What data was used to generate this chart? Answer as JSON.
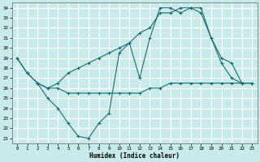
{
  "xlabel": "Humidex (Indice chaleur)",
  "xlim": [
    -0.5,
    23.5
  ],
  "ylim": [
    20.5,
    34.5
  ],
  "yticks": [
    21,
    22,
    23,
    24,
    25,
    26,
    27,
    28,
    29,
    30,
    31,
    32,
    33,
    34
  ],
  "xticks": [
    0,
    1,
    2,
    3,
    4,
    5,
    6,
    7,
    8,
    9,
    10,
    11,
    12,
    13,
    14,
    15,
    16,
    17,
    18,
    19,
    20,
    21,
    22,
    23
  ],
  "bg_color": "#c8eaea",
  "line_color": "#1a6e6e",
  "grid_color": "#ffffff",
  "line1_x": [
    0,
    1,
    2,
    3,
    4,
    5,
    6,
    7,
    8,
    9,
    10,
    11,
    12,
    13,
    14,
    15,
    16,
    17,
    18,
    19,
    20,
    21,
    22,
    23
  ],
  "line1_y": [
    29.0,
    27.5,
    26.5,
    25.0,
    24.0,
    22.5,
    21.2,
    21.0,
    22.5,
    23.5,
    29.5,
    30.5,
    27.0,
    31.0,
    34.0,
    34.0,
    33.5,
    34.0,
    34.0,
    31.0,
    28.5,
    27.0,
    26.5,
    26.5
  ],
  "line2_x": [
    2,
    3,
    4,
    5,
    6,
    7,
    8,
    9,
    10,
    11,
    12,
    13,
    14,
    15,
    16,
    17,
    18,
    19,
    20,
    21,
    22,
    23
  ],
  "line2_y": [
    26.5,
    26.0,
    26.5,
    27.5,
    28.0,
    28.5,
    29.0,
    29.5,
    30.0,
    30.5,
    31.5,
    32.0,
    33.5,
    33.5,
    34.0,
    34.0,
    33.5,
    31.0,
    29.0,
    28.5,
    26.5,
    26.5
  ],
  "line3_x": [
    0,
    1,
    2,
    3,
    4,
    5,
    6,
    7,
    8,
    9,
    10,
    11,
    12,
    13,
    14,
    15,
    16,
    17,
    18,
    19,
    20,
    21,
    22,
    23
  ],
  "line3_y": [
    29.0,
    27.5,
    26.5,
    26.0,
    26.0,
    25.5,
    25.5,
    25.5,
    25.5,
    25.5,
    25.5,
    25.5,
    25.5,
    26.0,
    26.0,
    26.5,
    26.5,
    26.5,
    26.5,
    26.5,
    26.5,
    26.5,
    26.5,
    26.5
  ]
}
